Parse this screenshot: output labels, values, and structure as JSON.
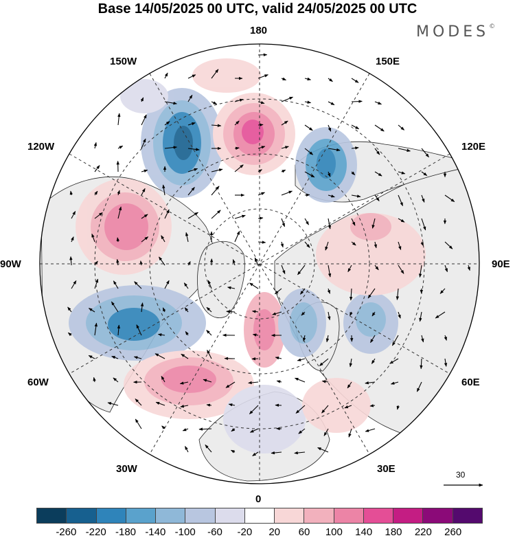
{
  "title": "Base 14/05/2025 00 UTC, valid 24/05/2025 00 UTC",
  "brand": {
    "name": "MODES",
    "mark": "©"
  },
  "longitude_labels": {
    "n180": "180",
    "n150w": "150W",
    "n150e": "150E",
    "n120w": "120W",
    "n120e": "120E",
    "n90w": "90W",
    "n90e": "90E",
    "n60w": "60W",
    "n60e": "60E",
    "n30w": "30W",
    "n30e": "30E",
    "n0": "0"
  },
  "reference_vector": "30",
  "legend": {
    "ticks": [
      "-260",
      "-220",
      "-180",
      "-140",
      "-100",
      "-60",
      "-20",
      "20",
      "60",
      "100",
      "140",
      "180",
      "220",
      "260"
    ],
    "colors": [
      "#0b3d5c",
      "#17608f",
      "#2f84ba",
      "#5aa2cc",
      "#8fb8d8",
      "#b8c6e0",
      "#dcdcec",
      "#ffffff",
      "#f8d7d7",
      "#f2b1bd",
      "#ec84a6",
      "#e44e96",
      "#c41d83",
      "#8b0a78",
      "#540a6e"
    ]
  },
  "map": {
    "projection": "north-polar-stereographic",
    "land_color": "#ececec",
    "ocean_color": "#ffffff"
  }
}
